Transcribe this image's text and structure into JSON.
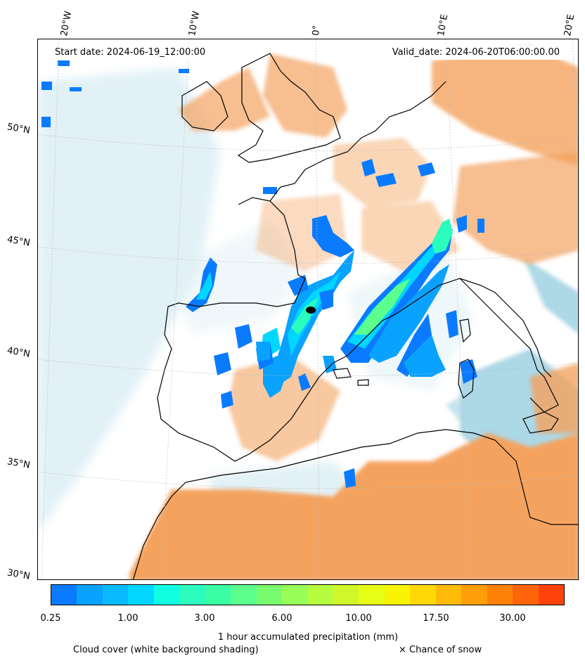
{
  "header": {
    "start_date": "Start date: 2024-06-19_12:00:00",
    "valid_date": "Valid_date: 2024-06-20T06:00:00.00"
  },
  "axes": {
    "longitudes": [
      "20°W",
      "10°W",
      "0°",
      "10°E",
      "20°E"
    ],
    "latitudes": [
      "50°N",
      "45°N",
      "40°N",
      "35°N",
      "30°N"
    ]
  },
  "colorbar": {
    "title": "1 hour accumulated precipitation (mm)",
    "ticks": [
      "0.25",
      "1.00",
      "3.00",
      "6.00",
      "10.00",
      "17.50",
      "30.00"
    ],
    "colors": [
      "#0a7bff",
      "#0aa2ff",
      "#0abaff",
      "#00d6ff",
      "#10ffe0",
      "#2cfcbc",
      "#3afda4",
      "#5cff8e",
      "#78fb6e",
      "#98fd56",
      "#b6fd40",
      "#cff72a",
      "#e6fe16",
      "#f8f402",
      "#ffd808",
      "#ffbb08",
      "#ff9e08",
      "#ff8208",
      "#ff640a",
      "#ff420a"
    ]
  },
  "legend": {
    "cloud_cover": "Cloud cover (white background shading)",
    "snow": "× Chance of snow"
  },
  "colors": {
    "dry_dust": "#f4a35f",
    "moist": "#add8e6",
    "coast": "#000000"
  }
}
